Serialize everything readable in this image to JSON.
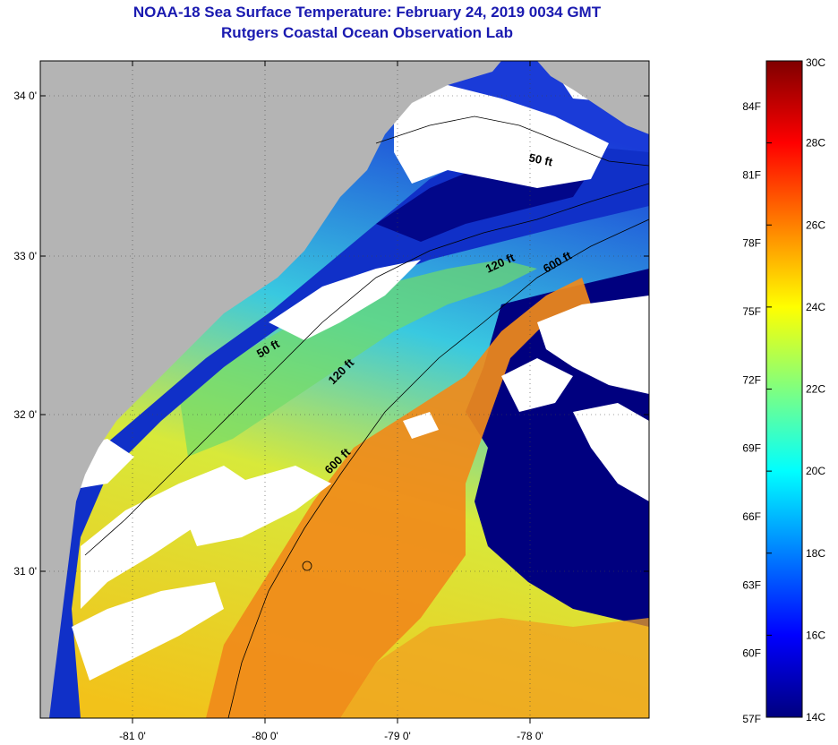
{
  "title": "NOAA-18 Sea Surface Temperature:  February 24, 2019 0034 GMT",
  "subtitle": "Rutgers Coastal Ocean Observation Lab",
  "longitude_ticks": [
    "-81 0'",
    "-80 0'",
    "-79 0'",
    "-78 0'"
  ],
  "latitude_ticks": [
    "34 0'",
    "33 0'",
    "32 0'",
    "31 0'"
  ],
  "contour_labels": {
    "ft50_north": "50 ft",
    "ft50_south": "50 ft",
    "ft120_north": "120 ft",
    "ft120_south": "120 ft",
    "ft600_north": "600 ft",
    "ft600_south": "600 ft"
  },
  "colorbar": {
    "fahrenheit": [
      "84F",
      "81F",
      "78F",
      "75F",
      "72F",
      "69F",
      "66F",
      "63F",
      "60F",
      "57F"
    ],
    "celsius": [
      "30C",
      "28C",
      "26C",
      "24C",
      "22C",
      "20C",
      "18C",
      "16C",
      "14C"
    ],
    "min_c": 14,
    "max_c": 30
  },
  "colors": {
    "title": "#1a1ab0",
    "land": "#b4b4b4",
    "cloud": "#ffffff",
    "cold": "#00007f",
    "warm": "#ff8000"
  }
}
